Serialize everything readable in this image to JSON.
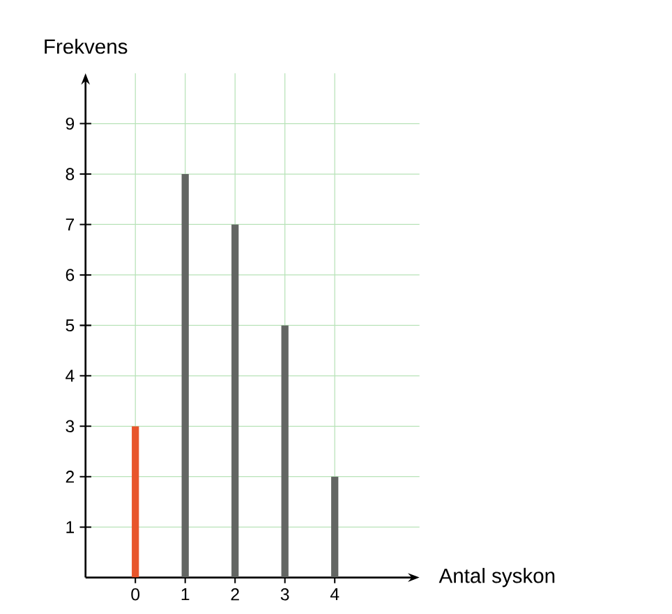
{
  "chart_data": {
    "type": "bar",
    "xlabel": "Antal syskon",
    "ylabel": "Frekvens",
    "x": [
      0,
      1,
      2,
      3,
      4
    ],
    "values": [
      3,
      8,
      7,
      5,
      2
    ],
    "colors": [
      "#e8552b",
      "#636663",
      "#636663",
      "#636663",
      "#636663"
    ],
    "xlim": [
      -1,
      5.7
    ],
    "ylim": [
      0,
      10
    ],
    "xticks": [
      0,
      1,
      2,
      3,
      4
    ],
    "yticks": [
      1,
      2,
      3,
      4,
      5,
      6,
      7,
      8,
      9
    ],
    "grid": true
  }
}
